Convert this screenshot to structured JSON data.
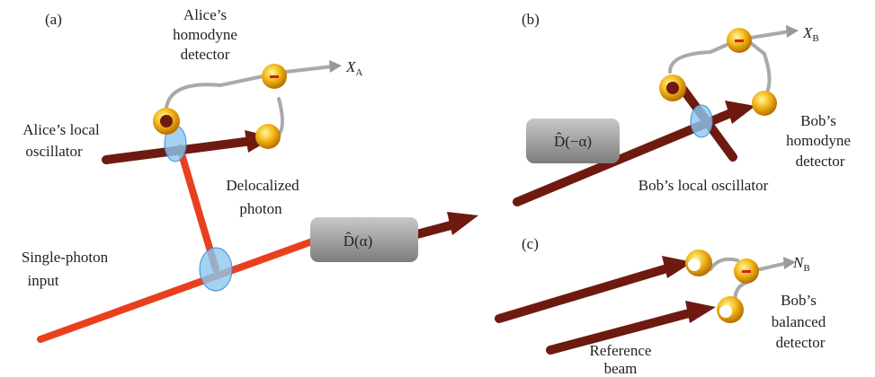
{
  "panel_a": {
    "label": "(a)",
    "detector_label": [
      "Alice’s",
      "homodyne",
      "detector"
    ],
    "output": {
      "symbol": "X",
      "subscript": "A"
    },
    "oscillator_label": [
      "Alice’s local",
      "oscillator"
    ],
    "photon_label": [
      "Delocalized",
      "photon"
    ],
    "displacement": "D̂(α)",
    "input_label": [
      "Single-photon",
      "input"
    ]
  },
  "panel_b": {
    "label": "(b)",
    "output": {
      "symbol": "X",
      "subscript": "B"
    },
    "displacement": "D̂(−α)",
    "detector_label": [
      "Bob’s",
      "homodyne",
      "detector"
    ],
    "oscillator_label": [
      "Bob’s local oscillator"
    ]
  },
  "panel_c": {
    "label": "(c)",
    "output": {
      "symbol": "N",
      "subscript": "B"
    },
    "detector_label": [
      "Bob’s",
      "balanced",
      "detector"
    ],
    "reference_label": [
      "Reference",
      "beam"
    ]
  }
}
